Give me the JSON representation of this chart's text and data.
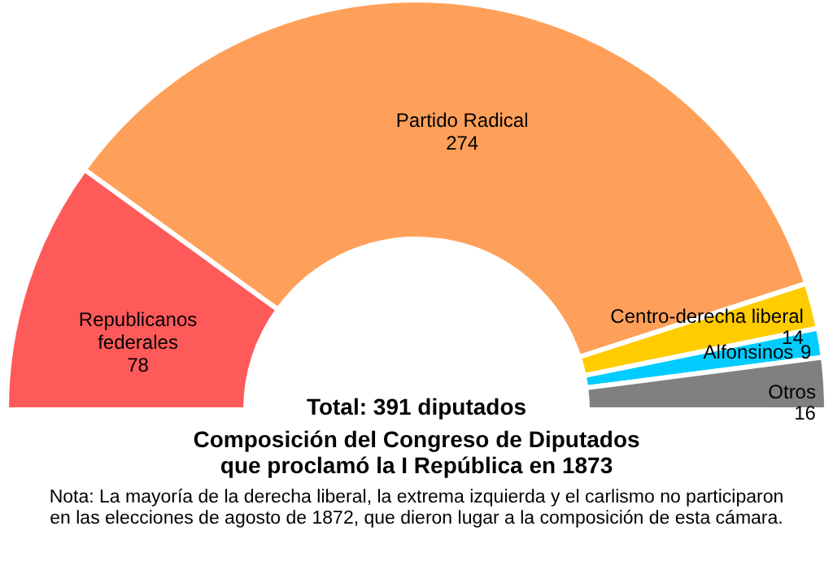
{
  "chart_data": {
    "type": "donut",
    "title": "Composición del Congreso de Diputados\nque proclamó la I República en 1873",
    "categories": [
      "Republicanos federales",
      "Partido Radical",
      "Centro-derecha liberal",
      "Alfonsinos",
      "Otros"
    ],
    "values": [
      78,
      274,
      14,
      9,
      16
    ],
    "colors": [
      "#ff5a5a",
      "#ffa05a",
      "#ffcc00",
      "#00ccff",
      "#808080"
    ],
    "data_labels": true,
    "annotations": [
      "Total: 391 diputados",
      "Nota: La mayoría de la derecha liberal, la extrema izquierda y el carlismo no participaron\nen las elecciones de agosto de 1872, que dieron lugar a la composición de esta cámara."
    ]
  }
}
